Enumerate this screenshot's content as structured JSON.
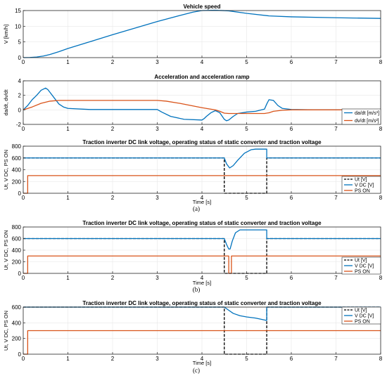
{
  "chart_data": [
    {
      "type": "line",
      "title": "Vehicle speed",
      "xlabel": "",
      "ylabel": "V [km/h]",
      "xlim": [
        0,
        8
      ],
      "ylim": [
        0,
        15
      ],
      "xticks": [
        "0",
        "1",
        "2",
        "3",
        "4",
        "5",
        "6",
        "7",
        "8"
      ],
      "yticks": [
        "0",
        "5",
        "10",
        "15"
      ],
      "grid": true,
      "series": [
        {
          "name": "",
          "color": "#0072BD",
          "dash": "",
          "x": [
            0,
            0.15,
            0.3,
            0.45,
            0.6,
            0.8,
            1.0,
            1.5,
            2.0,
            2.5,
            3.0,
            3.5,
            3.8,
            4.0,
            4.3,
            4.6,
            5.0,
            5.5,
            6.0,
            7.0,
            8.0
          ],
          "y": [
            0,
            0.05,
            0.2,
            0.5,
            1.0,
            1.9,
            2.9,
            5.1,
            7.3,
            9.4,
            11.5,
            13.4,
            14.5,
            15.0,
            15.1,
            14.9,
            14.1,
            13.3,
            13.0,
            12.7,
            12.5
          ]
        }
      ]
    },
    {
      "type": "line",
      "title": "Acceleration and acceleration ramp",
      "xlabel": "",
      "ylabel": "da/dt, dv/dt",
      "xlim": [
        0,
        8
      ],
      "ylim": [
        -2,
        4
      ],
      "xticks": [
        "0",
        "1",
        "2",
        "3",
        "4",
        "5",
        "6",
        "7",
        "8"
      ],
      "yticks": [
        "-2",
        "0",
        "2",
        "4"
      ],
      "grid": true,
      "legend": "bottom-right",
      "series": [
        {
          "name": "da/dt [m/s³]",
          "color": "#0072BD",
          "dash": "",
          "x": [
            0,
            0.1,
            0.2,
            0.3,
            0.4,
            0.5,
            0.55,
            0.6,
            0.7,
            0.8,
            0.9,
            1.0,
            1.5,
            2.0,
            2.5,
            3.0,
            3.1,
            3.3,
            3.6,
            4.0,
            4.05,
            4.1,
            4.2,
            4.3,
            4.4,
            4.5,
            4.55,
            4.6,
            4.7,
            4.8,
            5.0,
            5.2,
            5.4,
            5.45,
            5.5,
            5.6,
            5.7,
            5.8,
            6.0,
            6.5,
            7.0,
            8.0
          ],
          "y": [
            0,
            0.6,
            1.4,
            2.0,
            2.7,
            3.0,
            2.8,
            2.4,
            1.6,
            0.8,
            0.4,
            0.2,
            0.05,
            0.05,
            0.05,
            0.05,
            -0.3,
            -0.9,
            -1.3,
            -1.4,
            -1.2,
            -0.9,
            -0.4,
            -0.1,
            -0.4,
            -1.3,
            -1.5,
            -1.4,
            -0.9,
            -0.5,
            -0.3,
            -0.2,
            0.1,
            0.8,
            1.4,
            1.3,
            0.6,
            0.2,
            0.05,
            0.0,
            0.0,
            0.0
          ]
        },
        {
          "name": "dv/dt [m/s²]",
          "color": "#D95319",
          "dash": "",
          "x": [
            0,
            0.2,
            0.4,
            0.6,
            0.8,
            1.0,
            1.5,
            2.0,
            2.5,
            3.0,
            3.2,
            3.5,
            4.0,
            4.3,
            4.4,
            4.5,
            4.6,
            4.8,
            5.0,
            5.4,
            5.5,
            5.6,
            5.8,
            6.0,
            7.0,
            8.0
          ],
          "y": [
            0,
            0.4,
            0.9,
            1.2,
            1.3,
            1.3,
            1.3,
            1.3,
            1.3,
            1.3,
            1.2,
            0.9,
            0.3,
            0.0,
            -0.2,
            -0.45,
            -0.5,
            -0.5,
            -0.5,
            -0.5,
            -0.4,
            -0.2,
            -0.05,
            0.0,
            0.0,
            0.0
          ]
        }
      ]
    },
    {
      "type": "line",
      "title": "Traction inverter DC link voltage, operating status of static converter and traction voltage",
      "xlabel": "Time [s]",
      "ylabel": "Ut, V DC, PS ON",
      "xlim": [
        0,
        8
      ],
      "ylim": [
        0,
        800
      ],
      "xticks": [
        "0",
        "1",
        "2",
        "3",
        "4",
        "5",
        "6",
        "7",
        "8"
      ],
      "yticks": [
        "0",
        "200",
        "400",
        "600",
        "800"
      ],
      "grid": true,
      "legend": "bottom-right",
      "panel_label": "(a)",
      "series": [
        {
          "name": "Ut [V]",
          "color": "#000000",
          "dash": "4,2",
          "x": [
            0,
            4.5,
            4.5,
            5.45,
            5.45,
            8
          ],
          "y": [
            600,
            600,
            0,
            0,
            600,
            600
          ]
        },
        {
          "name": "V DC [V]",
          "color": "#0072BD",
          "dash": "",
          "x": [
            0,
            4.5,
            4.55,
            4.62,
            4.7,
            4.8,
            4.95,
            5.1,
            5.2,
            5.45,
            5.45,
            8
          ],
          "y": [
            600,
            600,
            500,
            430,
            470,
            560,
            680,
            740,
            750,
            750,
            600,
            600
          ]
        },
        {
          "name": "PS ON",
          "color": "#D95319",
          "dash": "",
          "x": [
            0,
            0.1,
            0.1,
            8
          ],
          "y": [
            0,
            0,
            300,
            300
          ]
        }
      ]
    },
    {
      "type": "line",
      "title": "Traction inverter DC link voltage, operating status of static converter and traction voltage",
      "xlabel": "Time [s]",
      "ylabel": "Ut, V DC, PS ON",
      "xlim": [
        0,
        8
      ],
      "ylim": [
        0,
        800
      ],
      "xticks": [
        "0",
        "1",
        "2",
        "3",
        "4",
        "5",
        "6",
        "7",
        "8"
      ],
      "yticks": [
        "0",
        "200",
        "400",
        "600",
        "800"
      ],
      "grid": true,
      "legend": "bottom-right",
      "panel_label": "(b)",
      "series": [
        {
          "name": "Ut [V]",
          "color": "#000000",
          "dash": "4,2",
          "x": [
            0,
            4.5,
            4.5,
            5.45,
            5.45,
            8
          ],
          "y": [
            600,
            600,
            0,
            0,
            600,
            600
          ]
        },
        {
          "name": "V DC [V]",
          "color": "#0072BD",
          "dash": "",
          "x": [
            0,
            4.5,
            4.55,
            4.6,
            4.63,
            4.68,
            4.75,
            4.85,
            5.0,
            5.45,
            5.45,
            8
          ],
          "y": [
            600,
            600,
            500,
            420,
            420,
            560,
            700,
            750,
            750,
            750,
            600,
            600
          ]
        },
        {
          "name": "PS ON",
          "color": "#D95319",
          "dash": "",
          "x": [
            0,
            0.1,
            0.1,
            4.6,
            4.6,
            4.66,
            4.66,
            8
          ],
          "y": [
            0,
            0,
            300,
            300,
            0,
            0,
            300,
            300
          ]
        }
      ]
    },
    {
      "type": "line",
      "title": "Traction inverter DC link voltage, operating status of static converter and traction voltage",
      "xlabel": "Time [s]",
      "ylabel": "Ut, V DC, PS ON",
      "xlim": [
        0,
        8
      ],
      "ylim": [
        0,
        600
      ],
      "xticks": [
        "0",
        "1",
        "2",
        "3",
        "4",
        "5",
        "6",
        "7",
        "8"
      ],
      "yticks": [
        "0",
        "200",
        "400",
        "600"
      ],
      "grid": true,
      "legend": "top-right",
      "panel_label": "(c)",
      "series": [
        {
          "name": "Ut [V]",
          "color": "#000000",
          "dash": "4,2",
          "x": [
            0,
            4.5,
            4.5,
            5.45,
            5.45,
            8
          ],
          "y": [
            600,
            600,
            0,
            0,
            600,
            600
          ]
        },
        {
          "name": "V DC [V]",
          "color": "#0072BD",
          "dash": "",
          "x": [
            0,
            4.5,
            4.6,
            4.7,
            4.85,
            5.0,
            5.2,
            5.45,
            5.45,
            8
          ],
          "y": [
            600,
            600,
            560,
            520,
            490,
            475,
            460,
            430,
            600,
            600
          ]
        },
        {
          "name": "PS ON",
          "color": "#D95319",
          "dash": "",
          "x": [
            0,
            0.1,
            0.1,
            8
          ],
          "y": [
            0,
            0,
            300,
            300
          ]
        }
      ]
    }
  ]
}
